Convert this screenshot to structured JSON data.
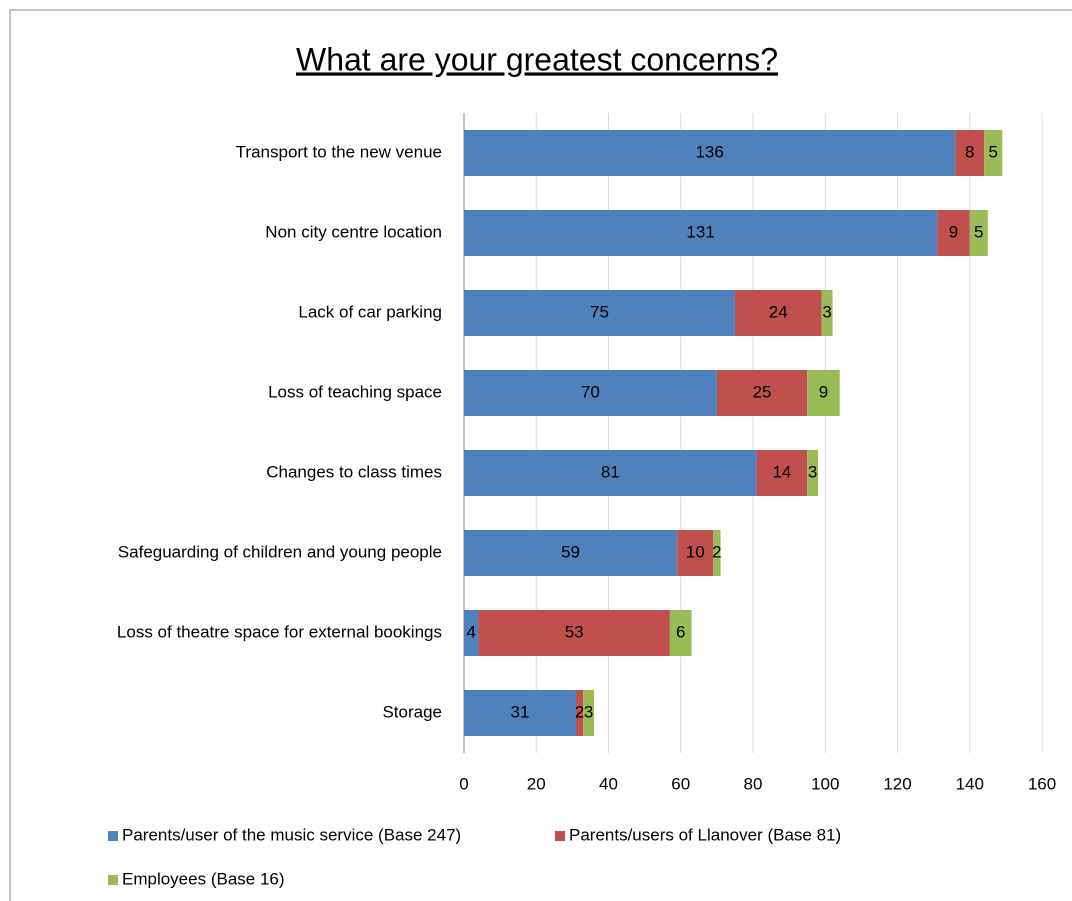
{
  "chart_data": {
    "type": "bar",
    "orientation": "horizontal",
    "stacked": true,
    "title": "What are your greatest concerns?",
    "categories": [
      "Transport to the new venue",
      "Non city centre location",
      "Lack of car parking",
      "Loss of teaching space",
      "Changes to class times",
      "Safeguarding of children and young people",
      "Loss of theatre space for external bookings",
      "Storage"
    ],
    "series": [
      {
        "name": "Parents/user of the music service (Base 247)",
        "color": "#4f81bd",
        "values": [
          136,
          131,
          75,
          70,
          81,
          59,
          4,
          31
        ]
      },
      {
        "name": "Parents/users of Llanover (Base 81)",
        "color": "#c0504d",
        "values": [
          8,
          9,
          24,
          25,
          14,
          10,
          53,
          2
        ]
      },
      {
        "name": "Employees (Base 16)",
        "color": "#9bbb59",
        "values": [
          5,
          5,
          3,
          9,
          3,
          2,
          6,
          3
        ]
      }
    ],
    "xlim": [
      0,
      160
    ],
    "xticks": [
      0,
      20,
      40,
      60,
      80,
      100,
      120,
      140,
      160
    ],
    "grid": true,
    "legend": "bottom"
  }
}
